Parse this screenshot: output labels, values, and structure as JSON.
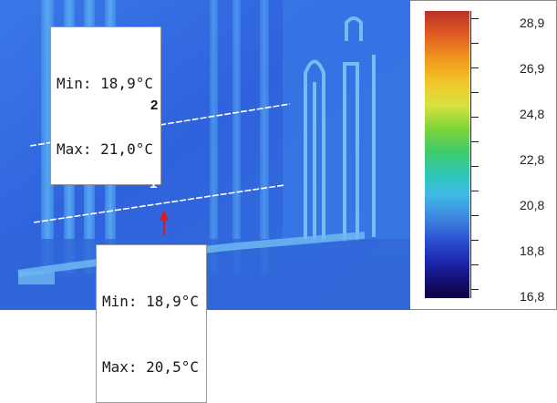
{
  "readouts": {
    "top": {
      "min": "Min: 18,9°C",
      "max": "Max: 21,0°C"
    },
    "bottom": {
      "min": "Min: 18,9°C",
      "max": "Max: 20,5°C"
    }
  },
  "line_labels": {
    "line2": "2",
    "line1": "1"
  },
  "scale": {
    "labels": [
      "28,9",
      "26,9",
      "24,8",
      "22,8",
      "20,8",
      "18,8",
      "16,8"
    ]
  }
}
